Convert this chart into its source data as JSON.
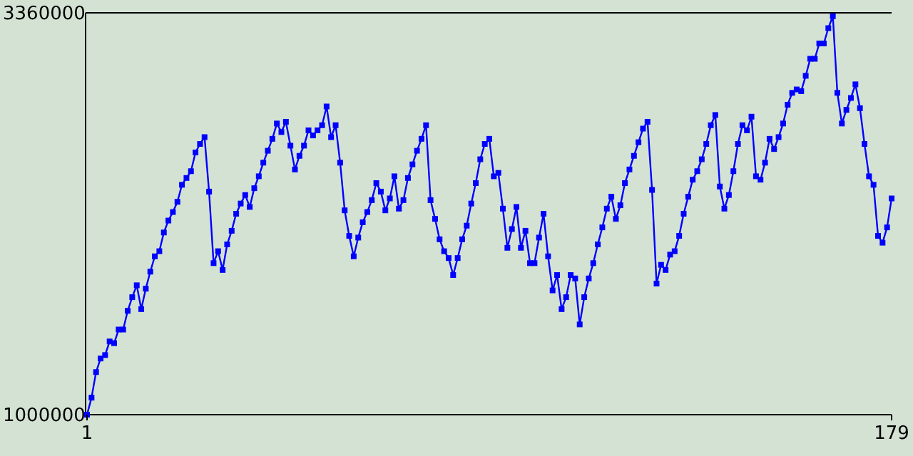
{
  "chart_data": {
    "type": "line",
    "x": [
      1,
      2,
      3,
      4,
      5,
      6,
      7,
      8,
      9,
      10,
      11,
      12,
      13,
      14,
      15,
      16,
      17,
      18,
      19,
      20,
      21,
      22,
      23,
      24,
      25,
      26,
      27,
      28,
      29,
      30,
      31,
      32,
      33,
      34,
      35,
      36,
      37,
      38,
      39,
      40,
      41,
      42,
      43,
      44,
      45,
      46,
      47,
      48,
      49,
      50,
      51,
      52,
      53,
      54,
      55,
      56,
      57,
      58,
      59,
      60,
      61,
      62,
      63,
      64,
      65,
      66,
      67,
      68,
      69,
      70,
      71,
      72,
      73,
      74,
      75,
      76,
      77,
      78,
      79,
      80,
      81,
      82,
      83,
      84,
      85,
      86,
      87,
      88,
      89,
      90,
      91,
      92,
      93,
      94,
      95,
      96,
      97,
      98,
      99,
      100,
      101,
      102,
      103,
      104,
      105,
      106,
      107,
      108,
      109,
      110,
      111,
      112,
      113,
      114,
      115,
      116,
      117,
      118,
      119,
      120,
      121,
      122,
      123,
      124,
      125,
      126,
      127,
      128,
      129,
      130,
      131,
      132,
      133,
      134,
      135,
      136,
      137,
      138,
      139,
      140,
      141,
      142,
      143,
      144,
      145,
      146,
      147,
      148,
      149,
      150,
      151,
      152,
      153,
      154,
      155,
      156,
      157,
      158,
      159,
      160,
      161,
      162,
      163,
      164,
      165,
      166,
      167,
      168,
      169,
      170,
      171,
      172,
      173,
      174,
      175,
      176,
      177,
      178,
      179
    ],
    "series": [
      {
        "color": "#0000ff",
        "values": [
          1000000,
          1100000,
          1250000,
          1330000,
          1350000,
          1430000,
          1420000,
          1500000,
          1500000,
          1610000,
          1690000,
          1760000,
          1620000,
          1740000,
          1840000,
          1930000,
          1960000,
          2070000,
          2140000,
          2190000,
          2250000,
          2350000,
          2390000,
          2430000,
          2540000,
          2590000,
          2630000,
          2310000,
          1890000,
          1960000,
          1850000,
          2000000,
          2080000,
          2180000,
          2240000,
          2290000,
          2220000,
          2330000,
          2400000,
          2480000,
          2550000,
          2620000,
          2710000,
          2660000,
          2720000,
          2580000,
          2440000,
          2520000,
          2580000,
          2670000,
          2640000,
          2670000,
          2700000,
          2810000,
          2630000,
          2700000,
          2480000,
          2200000,
          2050000,
          1930000,
          2040000,
          2130000,
          2190000,
          2260000,
          2360000,
          2310000,
          2200000,
          2270000,
          2400000,
          2210000,
          2260000,
          2390000,
          2470000,
          2550000,
          2620000,
          2700000,
          2260000,
          2150000,
          2030000,
          1960000,
          1920000,
          1820000,
          1920000,
          2030000,
          2110000,
          2240000,
          2360000,
          2500000,
          2590000,
          2620000,
          2400000,
          2420000,
          2210000,
          1980000,
          2090000,
          2220000,
          1980000,
          2080000,
          1890000,
          1890000,
          2040000,
          2180000,
          1930000,
          1730000,
          1820000,
          1620000,
          1690000,
          1820000,
          1800000,
          1530000,
          1690000,
          1800000,
          1890000,
          2000000,
          2100000,
          2210000,
          2280000,
          2150000,
          2230000,
          2360000,
          2440000,
          2520000,
          2600000,
          2680000,
          2720000,
          2320000,
          1770000,
          1880000,
          1850000,
          1940000,
          1960000,
          2050000,
          2180000,
          2280000,
          2380000,
          2430000,
          2500000,
          2590000,
          2700000,
          2760000,
          2340000,
          2210000,
          2290000,
          2430000,
          2590000,
          2700000,
          2670000,
          2750000,
          2400000,
          2380000,
          2480000,
          2620000,
          2560000,
          2630000,
          2710000,
          2820000,
          2890000,
          2910000,
          2900000,
          2990000,
          3090000,
          3090000,
          3180000,
          3180000,
          3270000,
          3340000,
          2890000,
          2710000,
          2790000,
          2860000,
          2940000,
          2800000,
          2590000,
          2400000,
          2350000,
          2050000,
          2010000,
          2100000,
          2270000
        ]
      }
    ],
    "xlim": [
      1,
      179
    ],
    "xticks": [
      1,
      179
    ],
    "ylim": [
      1000000,
      3360000
    ],
    "yticks": [
      1000000,
      3360000
    ],
    "marker": "square",
    "grid": false,
    "legend": false
  }
}
